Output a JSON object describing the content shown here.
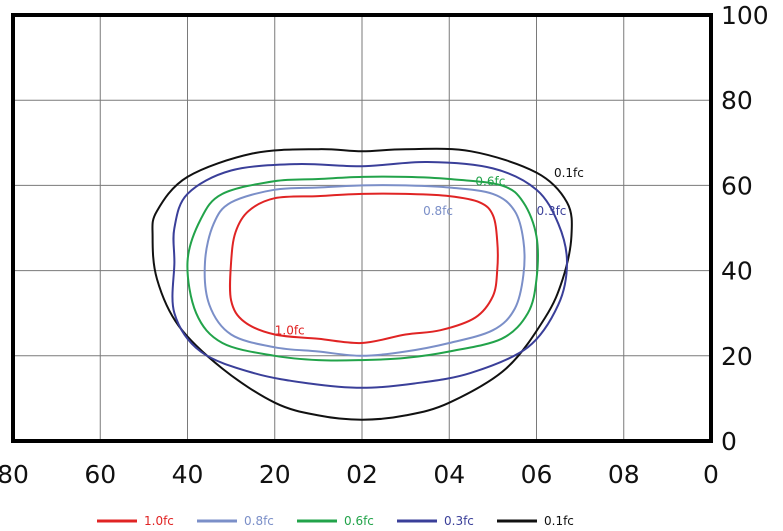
{
  "chart_data": {
    "type": "contour",
    "title": "",
    "xlabel": "",
    "ylabel": "",
    "x_tick_labels": [
      "80",
      "60",
      "40",
      "20",
      "02",
      "04",
      "06",
      "08",
      "0"
    ],
    "y_tick_labels": [
      "0",
      "20",
      "40",
      "60",
      "80",
      "100"
    ],
    "xlim": [
      -80,
      80
    ],
    "ylim": [
      0,
      100
    ],
    "grid": true,
    "legend_position": "bottom",
    "series": [
      {
        "name": "1.0fc",
        "color": "#e02424",
        "label_at": [
          -20,
          25
        ],
        "points": [
          [
            -30,
            42
          ],
          [
            -29,
            49
          ],
          [
            -26,
            54
          ],
          [
            -20,
            57
          ],
          [
            -10,
            57.5
          ],
          [
            0,
            58
          ],
          [
            10,
            58
          ],
          [
            20,
            57.5
          ],
          [
            27,
            56
          ],
          [
            30,
            53
          ],
          [
            31,
            47
          ],
          [
            31,
            40
          ],
          [
            30,
            34
          ],
          [
            26,
            29
          ],
          [
            18,
            26
          ],
          [
            10,
            25
          ],
          [
            0,
            23
          ],
          [
            -10,
            24
          ],
          [
            -20,
            25
          ],
          [
            -27,
            28
          ],
          [
            -30,
            33
          ]
        ]
      },
      {
        "name": "0.8fc",
        "color": "#7b8fc8",
        "label_at": [
          14,
          53
        ],
        "points": [
          [
            -36,
            42
          ],
          [
            -34,
            51
          ],
          [
            -30,
            56
          ],
          [
            -20,
            59
          ],
          [
            -10,
            59.5
          ],
          [
            0,
            60
          ],
          [
            10,
            60
          ],
          [
            20,
            59.5
          ],
          [
            30,
            58
          ],
          [
            35,
            54
          ],
          [
            37,
            47
          ],
          [
            37,
            39
          ],
          [
            35,
            31
          ],
          [
            30,
            26
          ],
          [
            20,
            23
          ],
          [
            10,
            21
          ],
          [
            0,
            20
          ],
          [
            -10,
            21
          ],
          [
            -20,
            22
          ],
          [
            -30,
            25
          ],
          [
            -35,
            32
          ]
        ]
      },
      {
        "name": "0.6fc",
        "color": "#22a34a",
        "label_at": [
          26,
          60
        ],
        "points": [
          [
            -40,
            42
          ],
          [
            -37,
            52
          ],
          [
            -32,
            58
          ],
          [
            -20,
            61
          ],
          [
            -10,
            61.5
          ],
          [
            0,
            62
          ],
          [
            10,
            62
          ],
          [
            20,
            61.5
          ],
          [
            32,
            60
          ],
          [
            37,
            56
          ],
          [
            40,
            48
          ],
          [
            40,
            38
          ],
          [
            38,
            30
          ],
          [
            32,
            24
          ],
          [
            20,
            21
          ],
          [
            10,
            19.5
          ],
          [
            0,
            19
          ],
          [
            -10,
            19
          ],
          [
            -20,
            20
          ],
          [
            -32,
            23
          ],
          [
            -38,
            30
          ]
        ]
      },
      {
        "name": "0.3fc",
        "color": "#3a3f99",
        "label_at": [
          40,
          53
        ],
        "points": [
          [
            -43,
            42
          ],
          [
            -43,
            50
          ],
          [
            -40,
            58
          ],
          [
            -30,
            63.5
          ],
          [
            -15,
            65
          ],
          [
            0,
            64.5
          ],
          [
            15,
            65.5
          ],
          [
            30,
            64
          ],
          [
            40,
            59
          ],
          [
            45,
            51
          ],
          [
            47,
            42
          ],
          [
            45,
            32
          ],
          [
            38,
            22
          ],
          [
            25,
            16
          ],
          [
            12,
            13.5
          ],
          [
            0,
            12.5
          ],
          [
            -12,
            13.5
          ],
          [
            -25,
            16
          ],
          [
            -37,
            21
          ],
          [
            -43,
            30
          ]
        ]
      },
      {
        "name": "0.1fc",
        "color": "#111111",
        "label_at": [
          44,
          62
        ],
        "points": [
          [
            -48,
            48
          ],
          [
            -47,
            54
          ],
          [
            -40,
            62
          ],
          [
            -25,
            67.5
          ],
          [
            -10,
            68.5
          ],
          [
            0,
            68
          ],
          [
            10,
            68.5
          ],
          [
            25,
            68
          ],
          [
            40,
            63
          ],
          [
            47,
            56
          ],
          [
            48,
            48
          ],
          [
            46,
            38
          ],
          [
            42,
            29
          ],
          [
            33,
            17
          ],
          [
            20,
            9
          ],
          [
            10,
            6
          ],
          [
            0,
            5
          ],
          [
            -10,
            6
          ],
          [
            -20,
            9
          ],
          [
            -32,
            17
          ],
          [
            -42,
            27
          ],
          [
            -47,
            38
          ]
        ]
      }
    ]
  }
}
